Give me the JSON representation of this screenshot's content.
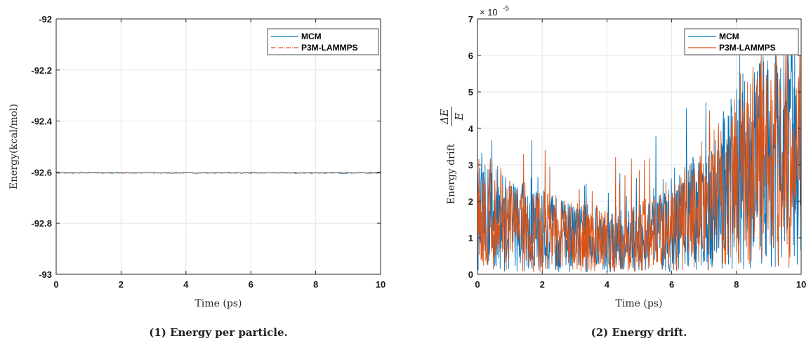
{
  "chart_data": [
    {
      "type": "line",
      "caption": "(1)  Energy per particle.",
      "xlabel": "Time (ps)",
      "ylabel": "Energy(kcal/mol)",
      "xlim": [
        0,
        10
      ],
      "ylim": [
        -93,
        -92
      ],
      "xticks": [
        "0",
        "2",
        "4",
        "6",
        "8",
        "10"
      ],
      "yticks": [
        "-93",
        "-92.8",
        "-92.6",
        "-92.4",
        "-92.2",
        "-92"
      ],
      "grid": true,
      "legend_position": "top-right",
      "series": [
        {
          "name": "MCM",
          "color": "#0072BD",
          "style": "solid",
          "x": [
            0,
            10
          ],
          "y": [
            -92.603,
            -92.603
          ]
        },
        {
          "name": "P3M-LAMMPS",
          "color": "#D95319",
          "style": "dash-dot",
          "x": [
            0,
            10
          ],
          "y": [
            -92.603,
            -92.603
          ]
        }
      ]
    },
    {
      "type": "line",
      "caption": "(2)  Energy drift.",
      "xlabel": "Time (ps)",
      "ylabel_prefix": "Energy drift",
      "ylabel_num": "ΔE",
      "ylabel_den": "E",
      "exponent_label": "× 10",
      "exponent_power": "-5",
      "xlim": [
        0,
        10
      ],
      "ylim": [
        0,
        7
      ],
      "xticks": [
        "0",
        "2",
        "4",
        "6",
        "8",
        "10"
      ],
      "yticks": [
        "0",
        "1",
        "2",
        "3",
        "4",
        "5",
        "6",
        "7"
      ],
      "grid": true,
      "legend_position": "top-right",
      "trend_x": [
        0,
        0.5,
        1,
        1.5,
        2,
        2.5,
        3,
        3.5,
        4,
        4.5,
        5,
        5.5,
        6,
        6.5,
        7,
        7.5,
        8,
        8.5,
        9,
        9.5,
        10
      ],
      "trend_y": [
        1.5,
        1.6,
        1.4,
        1.3,
        1.2,
        1.1,
        1.0,
        1.0,
        0.9,
        0.9,
        1.0,
        1.1,
        1.2,
        1.6,
        1.8,
        2.2,
        2.6,
        3.0,
        3.2,
        3.4,
        3.3
      ],
      "series": [
        {
          "name": "MCM",
          "color": "#0072BD",
          "style": "solid"
        },
        {
          "name": "P3M-LAMMPS",
          "color": "#D95319",
          "style": "solid"
        }
      ]
    }
  ]
}
